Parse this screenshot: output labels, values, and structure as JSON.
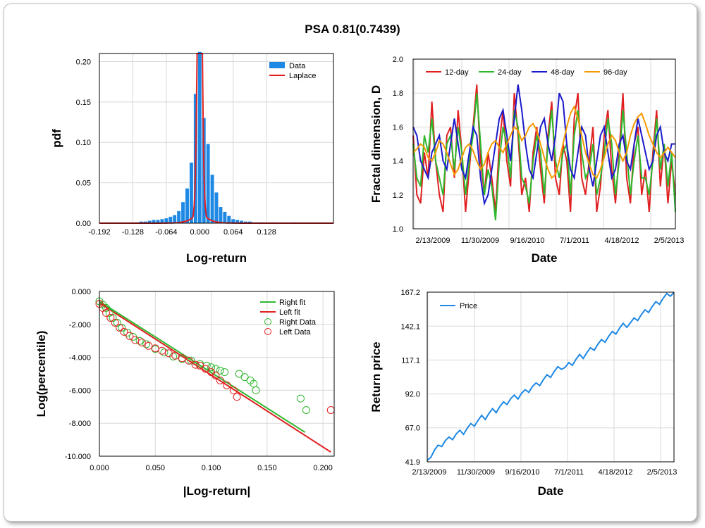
{
  "title": "PSA 0.81(0.7439)",
  "chart_data": [
    {
      "type": "bar",
      "name": "pdf",
      "xlabel": "Log-return",
      "ylabel": "pdf",
      "xlim": [
        -0.192,
        0.256
      ],
      "ylim": [
        0,
        0.21
      ],
      "x_ticks": [
        "-0.192",
        "-0.128",
        "-0.064",
        "0.000",
        "0.064",
        "0.128"
      ],
      "y_ticks": [
        "0.00",
        "0.05",
        "0.10",
        "0.15",
        "0.20"
      ],
      "legend": [
        "Data",
        "Laplace"
      ],
      "legend_position": "top-right",
      "colors": {
        "Data": "#1e88e5",
        "Laplace": "#e02020"
      },
      "bin_width": 0.008,
      "bins": [
        [
          -0.12,
          0.001
        ],
        [
          -0.112,
          0.002
        ],
        [
          -0.104,
          0.002
        ],
        [
          -0.096,
          0.003
        ],
        [
          -0.088,
          0.004
        ],
        [
          -0.08,
          0.004
        ],
        [
          -0.072,
          0.005
        ],
        [
          -0.064,
          0.006
        ],
        [
          -0.056,
          0.008
        ],
        [
          -0.048,
          0.01
        ],
        [
          -0.04,
          0.015
        ],
        [
          -0.032,
          0.026
        ],
        [
          -0.024,
          0.043
        ],
        [
          -0.016,
          0.075
        ],
        [
          -0.008,
          0.16
        ],
        [
          0.0,
          0.212
        ],
        [
          0.008,
          0.13
        ],
        [
          0.016,
          0.098
        ],
        [
          0.024,
          0.06
        ],
        [
          0.032,
          0.038
        ],
        [
          0.04,
          0.02
        ],
        [
          0.048,
          0.014
        ],
        [
          0.056,
          0.009
        ],
        [
          0.064,
          0.005
        ],
        [
          0.072,
          0.004
        ],
        [
          0.08,
          0.003
        ],
        [
          0.088,
          0.002
        ],
        [
          0.096,
          0.002
        ],
        [
          0.104,
          0.001
        ],
        [
          0.112,
          0.001
        ],
        [
          0.12,
          0.001
        ],
        [
          0.14,
          0.001
        ],
        [
          0.18,
          0.001
        ]
      ],
      "laplace": {
        "mu": 0.0,
        "b": 0.0023
      }
    },
    {
      "type": "line",
      "name": "fractal",
      "xlabel": "Date",
      "ylabel": "Fractal dimension, D",
      "ylim": [
        1.0,
        2.0
      ],
      "x_ticks": [
        "2/13/2009",
        "11/30/2009",
        "9/16/2010",
        "7/1/2011",
        "4/18/2012",
        "2/5/2013"
      ],
      "y_ticks": [
        "1.0",
        "1.2",
        "1.4",
        "1.6",
        "1.8",
        "2.0"
      ],
      "legend_position": "top",
      "series": [
        {
          "name": "12-day",
          "color": "#e02020",
          "values": [
            1.55,
            1.2,
            1.15,
            1.45,
            1.3,
            1.75,
            1.4,
            1.2,
            1.1,
            1.55,
            1.6,
            1.3,
            1.7,
            1.45,
            1.1,
            1.35,
            1.6,
            1.85,
            1.4,
            1.2,
            1.45,
            1.3,
            1.1,
            1.5,
            1.7,
            1.4,
            1.25,
            1.8,
            1.55,
            1.2,
            1.3,
            1.1,
            1.45,
            1.6,
            1.35,
            1.15,
            1.55,
            1.75,
            1.3,
            1.2,
            1.5,
            1.4,
            1.1,
            1.65,
            1.8,
            1.3,
            1.2,
            1.4,
            1.6,
            1.1,
            1.25,
            1.55,
            1.7,
            1.35,
            1.15,
            1.45,
            1.8,
            1.3,
            1.15,
            1.5,
            1.6,
            1.2,
            1.35,
            1.1,
            1.45,
            1.7,
            1.25,
            1.5,
            1.15,
            1.4,
            1.2
          ]
        },
        {
          "name": "24-day",
          "color": "#2db82d",
          "values": [
            1.5,
            1.3,
            1.25,
            1.55,
            1.45,
            1.65,
            1.4,
            1.3,
            1.2,
            1.5,
            1.55,
            1.35,
            1.6,
            1.45,
            1.2,
            1.4,
            1.55,
            1.8,
            1.5,
            1.2,
            1.35,
            1.25,
            1.05,
            1.4,
            1.6,
            1.5,
            1.3,
            1.7,
            1.6,
            1.3,
            1.25,
            1.15,
            1.4,
            1.55,
            1.45,
            1.2,
            1.5,
            1.7,
            1.4,
            1.3,
            1.45,
            1.5,
            1.2,
            1.55,
            1.7,
            1.45,
            1.3,
            1.35,
            1.5,
            1.2,
            1.3,
            1.45,
            1.65,
            1.5,
            1.2,
            1.4,
            1.7,
            1.45,
            1.2,
            1.4,
            1.55,
            1.3,
            1.3,
            1.2,
            1.4,
            1.65,
            1.35,
            1.5,
            1.25,
            1.45,
            1.1
          ]
        },
        {
          "name": "48-day",
          "color": "#1a1acc",
          "values": [
            1.6,
            1.55,
            1.4,
            1.35,
            1.3,
            1.45,
            1.5,
            1.55,
            1.4,
            1.35,
            1.5,
            1.65,
            1.5,
            1.35,
            1.3,
            1.45,
            1.6,
            1.55,
            1.3,
            1.15,
            1.2,
            1.35,
            1.5,
            1.65,
            1.7,
            1.55,
            1.4,
            1.65,
            1.85,
            1.7,
            1.5,
            1.35,
            1.3,
            1.45,
            1.6,
            1.65,
            1.5,
            1.4,
            1.55,
            1.8,
            1.75,
            1.5,
            1.35,
            1.3,
            1.45,
            1.6,
            1.55,
            1.35,
            1.25,
            1.4,
            1.55,
            1.6,
            1.45,
            1.3,
            1.35,
            1.5,
            1.55,
            1.4,
            1.35,
            1.5,
            1.65,
            1.55,
            1.45,
            1.35,
            1.4,
            1.55,
            1.6,
            1.45,
            1.4,
            1.5,
            1.5
          ]
        },
        {
          "name": "96-day",
          "color": "#f59a00",
          "values": [
            1.45,
            1.47,
            1.5,
            1.48,
            1.42,
            1.4,
            1.45,
            1.52,
            1.5,
            1.45,
            1.38,
            1.32,
            1.35,
            1.42,
            1.48,
            1.5,
            1.46,
            1.4,
            1.35,
            1.38,
            1.45,
            1.5,
            1.52,
            1.48,
            1.45,
            1.5,
            1.55,
            1.6,
            1.58,
            1.52,
            1.55,
            1.6,
            1.62,
            1.58,
            1.5,
            1.42,
            1.35,
            1.3,
            1.32,
            1.4,
            1.5,
            1.6,
            1.68,
            1.72,
            1.65,
            1.55,
            1.45,
            1.38,
            1.32,
            1.3,
            1.35,
            1.42,
            1.5,
            1.55,
            1.52,
            1.45,
            1.4,
            1.45,
            1.55,
            1.62,
            1.66,
            1.68,
            1.62,
            1.55,
            1.5,
            1.45,
            1.42,
            1.45,
            1.48,
            1.45,
            1.42
          ]
        }
      ]
    },
    {
      "type": "scatter",
      "name": "percentile",
      "xlabel": "|Log-return|",
      "ylabel": "Log(percentile)",
      "xlim": [
        0.0,
        0.21
      ],
      "ylim": [
        -10.0,
        0.0
      ],
      "x_ticks": [
        "0.000",
        "0.050",
        "0.100",
        "0.150",
        "0.200"
      ],
      "y_ticks": [
        "0.000",
        "-2.000",
        "-4.000",
        "-6.000",
        "-8.000",
        "-10.000"
      ],
      "legend": [
        "Right fit",
        "Left fit",
        "Right Data",
        "Left Data"
      ],
      "legend_position": "top-right",
      "right_fit": {
        "x": [
          0.0,
          0.184
        ],
        "y": [
          -0.6,
          -8.55
        ],
        "color": "#2db82d"
      },
      "left_fit": {
        "x": [
          0.0,
          0.207
        ],
        "y": [
          -0.7,
          -9.75
        ],
        "color": "#e02020"
      },
      "right_data": {
        "color": "#2db82d",
        "x": [
          0.0,
          0.003,
          0.006,
          0.009,
          0.012,
          0.016,
          0.02,
          0.025,
          0.03,
          0.036,
          0.042,
          0.05,
          0.058,
          0.066,
          0.074,
          0.082,
          0.09,
          0.096,
          0.1,
          0.104,
          0.108,
          0.112,
          0.125,
          0.13,
          0.135,
          0.138,
          0.14,
          0.18,
          0.185
        ],
        "y": [
          -0.6,
          -0.8,
          -1.0,
          -1.3,
          -1.6,
          -1.9,
          -2.2,
          -2.5,
          -2.75,
          -3.0,
          -3.2,
          -3.5,
          -3.7,
          -3.95,
          -4.1,
          -4.2,
          -4.4,
          -4.5,
          -4.6,
          -4.7,
          -4.8,
          -4.9,
          -5.0,
          -5.2,
          -5.4,
          -5.6,
          -6.0,
          -6.5,
          -7.2
        ]
      },
      "left_data": {
        "color": "#e02020",
        "x": [
          0.0,
          0.003,
          0.006,
          0.01,
          0.014,
          0.018,
          0.022,
          0.027,
          0.032,
          0.038,
          0.044,
          0.05,
          0.056,
          0.062,
          0.068,
          0.074,
          0.08,
          0.086,
          0.09,
          0.095,
          0.1,
          0.104,
          0.108,
          0.114,
          0.12,
          0.123,
          0.207
        ],
        "y": [
          -0.75,
          -1.0,
          -1.3,
          -1.6,
          -1.9,
          -2.2,
          -2.45,
          -2.7,
          -2.95,
          -3.1,
          -3.3,
          -3.45,
          -3.6,
          -3.75,
          -3.9,
          -4.05,
          -4.2,
          -4.45,
          -4.5,
          -4.7,
          -4.9,
          -5.1,
          -5.4,
          -5.7,
          -6.0,
          -6.4,
          -7.2
        ]
      }
    },
    {
      "type": "line",
      "name": "price",
      "xlabel": "Date",
      "ylabel": "Return price",
      "ylim": [
        41.9,
        167.2
      ],
      "x_ticks": [
        "2/13/2009",
        "11/30/2009",
        "9/16/2010",
        "7/1/2011",
        "4/18/2012",
        "2/5/2013"
      ],
      "y_ticks": [
        "41.9",
        "67.0",
        "92.0",
        "117.1",
        "142.1",
        "167.2"
      ],
      "legend": [
        "Price"
      ],
      "legend_position": "top-left",
      "series": [
        {
          "name": "Price",
          "color": "#1e88e5",
          "values": [
            43,
            47,
            50,
            52,
            55,
            57,
            58,
            60,
            62,
            63,
            64,
            66,
            68,
            70,
            72,
            74,
            75,
            77,
            79,
            80,
            82,
            84,
            86,
            88,
            89,
            90,
            92,
            93,
            95,
            97,
            98,
            100,
            102,
            104,
            106,
            108,
            110,
            112,
            111,
            113,
            115,
            117,
            119,
            120,
            122,
            124,
            126,
            128,
            130,
            132,
            134,
            136,
            138,
            140,
            142,
            143,
            144,
            146,
            148,
            150,
            152,
            154,
            156,
            158,
            160,
            162,
            164,
            166,
            167
          ]
        }
      ]
    }
  ]
}
